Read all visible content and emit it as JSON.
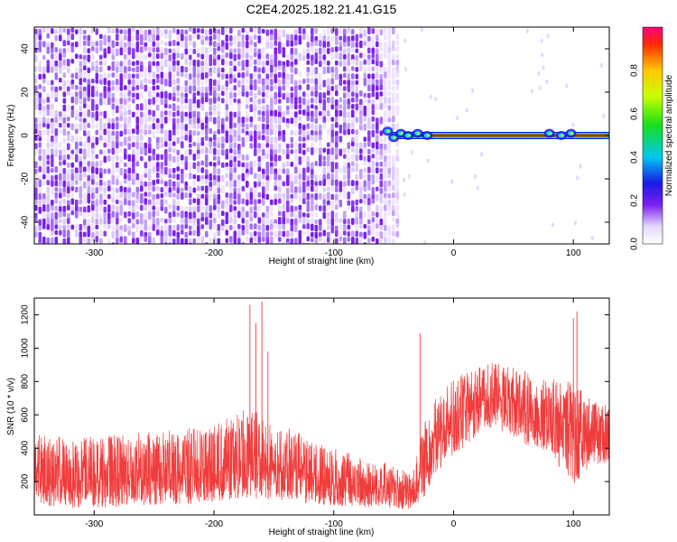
{
  "figure": {
    "title": "C2E4.2025.182.21.41.G15"
  },
  "chart_data": [
    {
      "type": "heatmap",
      "xlabel": "Height of straight line (km)",
      "ylabel": "Frequency (Hz)",
      "xlim": [
        -350,
        130
      ],
      "ylim": [
        -50,
        50
      ],
      "x_ticks": [
        -300,
        -200,
        -100,
        0,
        100
      ],
      "y_ticks": [
        -40,
        -20,
        0,
        20,
        40
      ],
      "x_tick_labels": [
        "-300",
        "-200",
        "-100",
        "0",
        "100"
      ],
      "y_tick_labels": [
        "-40",
        "-20",
        "0",
        "20",
        "40"
      ],
      "colorbar": {
        "label": "Normalized spectral amplitude",
        "range": [
          0,
          1
        ],
        "ticks": [
          0.0,
          0.2,
          0.4,
          0.6,
          0.8
        ],
        "tick_labels": [
          "0.0",
          "0.2",
          "0.4",
          "0.6",
          "0.8"
        ]
      },
      "regions": [
        {
          "description": "broadband noise",
          "x_range": [
            -350,
            -52
          ],
          "y_range": [
            -50,
            50
          ],
          "amplitude_range": [
            0.0,
            0.2
          ]
        },
        {
          "description": "carrier line",
          "x_range": [
            -52,
            130
          ],
          "y_center": 0,
          "amplitude_peak": 1.0
        }
      ],
      "grid": false,
      "legend": "colorbar-right",
      "colors": {
        "noise": "#7B1FF0",
        "noise_light": "#D9C6FA",
        "peak": "#e8001c"
      }
    },
    {
      "type": "line",
      "xlabel": "Height of straight line (km)",
      "ylabel": "SNR (10 * v/v)",
      "xlim": [
        -350,
        130
      ],
      "ylim": [
        0,
        1300
      ],
      "x_ticks": [
        -300,
        -200,
        -100,
        0,
        100
      ],
      "y_ticks": [
        200,
        400,
        600,
        800,
        1000,
        1200
      ],
      "x_tick_labels": [
        "-300",
        "-200",
        "-100",
        "0",
        "100"
      ],
      "y_tick_labels": [
        "200",
        "400",
        "600",
        "800",
        "1000",
        "1200"
      ],
      "series": [
        {
          "color": "#f03c3c",
          "envelope": {
            "x": [
              -350,
              -300,
              -250,
              -200,
              -170,
              -150,
              -100,
              -60,
              -35,
              -25,
              -15,
              0,
              20,
              35,
              60,
              80,
              100,
              115,
              130
            ],
            "mean": [
              220,
              210,
              230,
              250,
              300,
              280,
              180,
              150,
              120,
              300,
              430,
              550,
              680,
              720,
              640,
              560,
              520,
              480,
              470
            ],
            "low": [
              50,
              40,
              60,
              70,
              100,
              90,
              50,
              40,
              30,
              100,
              250,
              350,
              480,
              520,
              420,
              360,
              180,
              300,
              300
            ],
            "high": [
              480,
              470,
              500,
              540,
              650,
              560,
              400,
              320,
              250,
              550,
              700,
              820,
              880,
              920,
              860,
              820,
              800,
              700,
              650
            ]
          },
          "spikes": [
            {
              "x": -170,
              "y": 1260
            },
            {
              "x": -165,
              "y": 1150
            },
            {
              "x": -160,
              "y": 1280
            },
            {
              "x": -155,
              "y": 980
            },
            {
              "x": -28,
              "y": 1090
            },
            {
              "x": 100,
              "y": 1180
            },
            {
              "x": 103,
              "y": 1220
            }
          ]
        }
      ],
      "grid": false,
      "legend": "none"
    }
  ]
}
